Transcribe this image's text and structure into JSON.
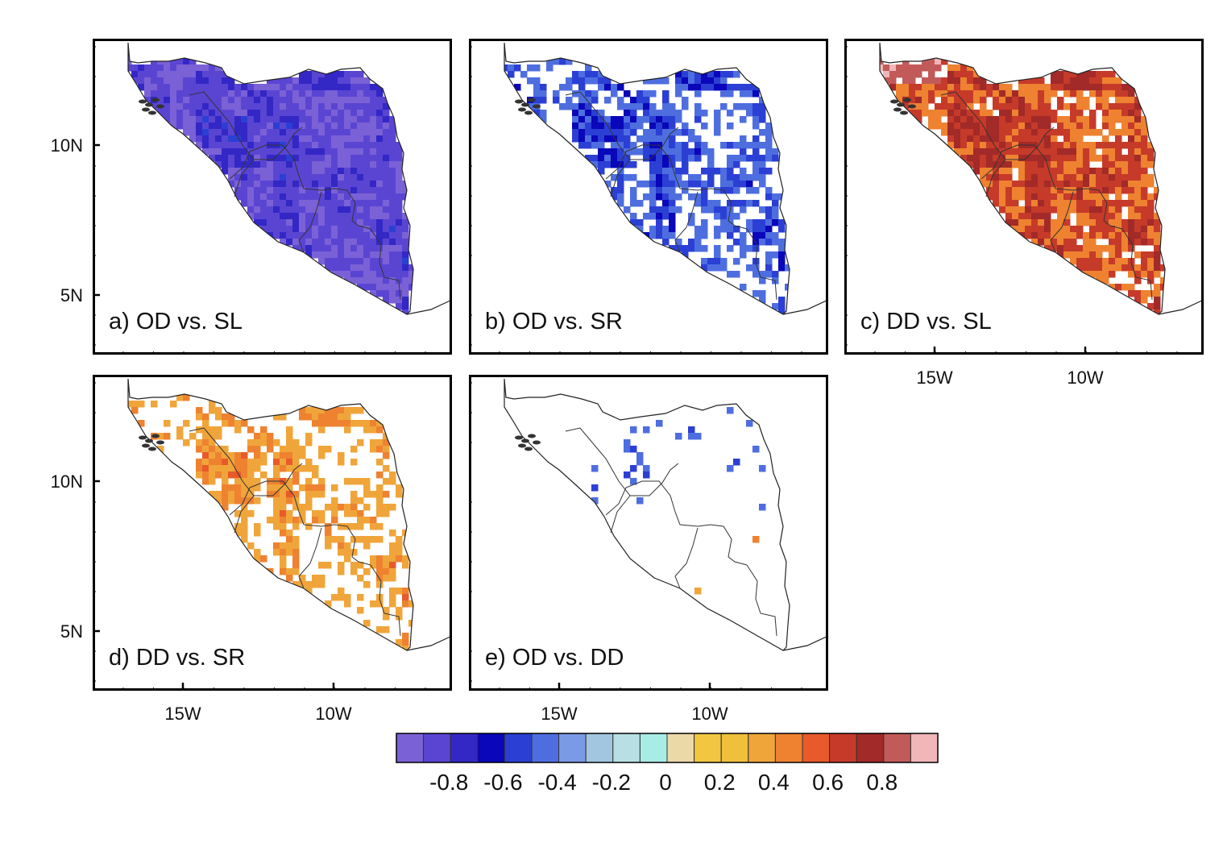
{
  "panels": [
    {
      "id": "a",
      "label": "a) OD vs. SL",
      "show_y_labels": true,
      "show_x_labels": false,
      "field": "neg_strong"
    },
    {
      "id": "b",
      "label": "b) OD vs. SR",
      "show_y_labels": false,
      "show_x_labels": false,
      "field": "neg_patchy"
    },
    {
      "id": "c",
      "label": "c) DD vs. SL",
      "show_y_labels": false,
      "show_x_labels": true,
      "field": "pos_strong"
    },
    {
      "id": "d",
      "label": "d) DD vs. SR",
      "show_y_labels": true,
      "show_x_labels": true,
      "field": "pos_patchy"
    },
    {
      "id": "e",
      "label": "e) OD vs. DD",
      "show_y_labels": false,
      "show_x_labels": true,
      "field": "mixed_sparse"
    }
  ],
  "axes": {
    "lat_labels": [
      "10N",
      "5N"
    ],
    "lon_labels": [
      "15W",
      "10W"
    ]
  },
  "colorbar": {
    "colors": [
      "#7b61d6",
      "#5a45d3",
      "#3327c6",
      "#0a06b9",
      "#2b3fd4",
      "#4e6ee0",
      "#7b9ae6",
      "#a2c6e0",
      "#b8e0e4",
      "#a8ece6",
      "#ecd9a8",
      "#f2c641",
      "#f0c03a",
      "#f0a53a",
      "#ee8230",
      "#e85a2a",
      "#c63a2a",
      "#a22a28",
      "#c25a5a",
      "#f0b6b8"
    ],
    "tick_labels": [
      "-0.8",
      "-0.6",
      "-0.4",
      "-0.2",
      "0",
      "0.2",
      "0.4",
      "0.6",
      "0.8"
    ]
  }
}
